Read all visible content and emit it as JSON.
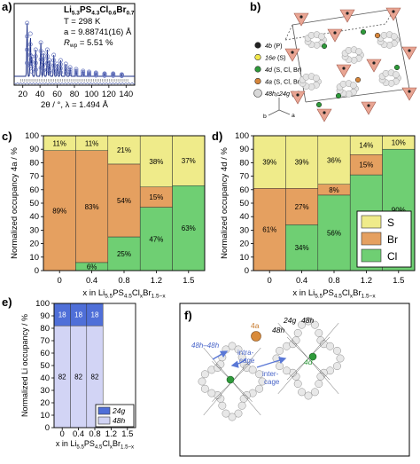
{
  "panels": {
    "a": {
      "label": "a)",
      "formula": "Li5.3PS4.3Cl0.6Br0.7",
      "formula_parts": [
        {
          "t": "Li",
          "sub": false
        },
        {
          "t": "5.3",
          "sub": true
        },
        {
          "t": "PS",
          "sub": false
        },
        {
          "t": "4.3",
          "sub": true
        },
        {
          "t": "Cl",
          "sub": false
        },
        {
          "t": "0.6",
          "sub": true
        },
        {
          "t": "Br",
          "sub": false
        },
        {
          "t": "0.7",
          "sub": true
        }
      ],
      "temp": "T = 298 K",
      "lattice": "a = 9.88741(16) Å",
      "rwp_prefix": "R",
      "rwp_sub": "wp",
      "rwp_value": " = 5.51 %",
      "xlabel": "2θ / °, λ = 1.494 Å",
      "xticks": [
        "20",
        "40",
        "60",
        "80",
        "100",
        "120",
        "140"
      ]
    },
    "b": {
      "label": "b)",
      "legend": [
        {
          "text": "4b (P)",
          "color": "#222222"
        },
        {
          "text": "16e (S)",
          "color": "#f2e84a"
        },
        {
          "text": "4d (S, Cl, Br)",
          "color": "#2e9a3a"
        },
        {
          "text": "4a (S, Cl, Br)",
          "color": "#d5853a"
        },
        {
          "text": "48h, 24g (Li)",
          "color": "#d8d8d8"
        }
      ],
      "axes_letters": [
        "c",
        "b",
        "a"
      ]
    },
    "c": {
      "label": "c)"
    },
    "d": {
      "label": "d)"
    },
    "e": {
      "label": "e)"
    },
    "f": {
      "label": "f)",
      "labels": {
        "site4a": "4a",
        "site24g": "24g",
        "site48h_top": "48h",
        "site48h_mid": "48h",
        "site4d": "4d",
        "jump": "48h–48h",
        "intra": "intra-",
        "intra2": "cage",
        "inter": "inter-",
        "inter2": "cage"
      }
    }
  },
  "chart_data": [
    {
      "panel": "c",
      "type": "bar",
      "stacked": true,
      "title": "",
      "ylabel": "Normalized occupancy 4a / %",
      "xlabel": "x in Li5.5PS4.5ClxBr1.5-x",
      "xlabel_parts": [
        {
          "t": "x in Li",
          "sub": false
        },
        {
          "t": "5.5",
          "sub": true
        },
        {
          "t": "PS",
          "sub": false
        },
        {
          "t": "4.5",
          "sub": true
        },
        {
          "t": "Cl",
          "sub": false
        },
        {
          "t": "x",
          "sub": true
        },
        {
          "t": "Br",
          "sub": false
        },
        {
          "t": "1.5−x",
          "sub": true
        }
      ],
      "categories": [
        "0",
        "0.4",
        "0.8",
        "1.2",
        "1.5"
      ],
      "ylim": [
        0,
        100
      ],
      "yticks": [
        "0",
        "10",
        "20",
        "30",
        "40",
        "50",
        "60",
        "70",
        "80",
        "90",
        "100"
      ],
      "series": [
        {
          "name": "Cl",
          "color": "#6fcf73",
          "values": [
            0,
            6,
            25,
            47,
            63
          ],
          "labels": [
            "",
            "6%",
            "25%",
            "47%",
            "63%"
          ]
        },
        {
          "name": "Br",
          "color": "#e5a060",
          "values": [
            89,
            83,
            54,
            15,
            0
          ],
          "labels": [
            "89%",
            "83%",
            "54%",
            "15%",
            ""
          ]
        },
        {
          "name": "S",
          "color": "#efeb8a",
          "values": [
            11,
            11,
            21,
            38,
            37
          ],
          "labels": [
            "11%",
            "11%",
            "21%",
            "38%",
            "37%"
          ]
        }
      ]
    },
    {
      "panel": "d",
      "type": "bar",
      "stacked": true,
      "title": "",
      "ylabel": "Normalized occupancy 4d / %",
      "xlabel": "x in Li5.5PS4.5ClxBr1.5-x",
      "xlabel_parts": [
        {
          "t": "x in Li",
          "sub": false
        },
        {
          "t": "5.5",
          "sub": true
        },
        {
          "t": "PS",
          "sub": false
        },
        {
          "t": "4.5",
          "sub": true
        },
        {
          "t": "Cl",
          "sub": false
        },
        {
          "t": "x",
          "sub": true
        },
        {
          "t": "Br",
          "sub": false
        },
        {
          "t": "1.5−x",
          "sub": true
        }
      ],
      "categories": [
        "0",
        "0.4",
        "0.8",
        "1.2",
        "1.5"
      ],
      "ylim": [
        0,
        100
      ],
      "yticks": [
        "0",
        "10",
        "20",
        "30",
        "40",
        "50",
        "60",
        "70",
        "80",
        "90",
        "100"
      ],
      "legend": {
        "placement": "bottom-right",
        "order": [
          "S",
          "Br",
          "Cl"
        ]
      },
      "series": [
        {
          "name": "Cl",
          "color": "#6fcf73",
          "values": [
            0,
            34,
            56,
            71,
            90
          ],
          "labels": [
            "",
            "34%",
            "56%",
            "71%",
            "90%"
          ]
        },
        {
          "name": "Br",
          "color": "#e5a060",
          "values": [
            61,
            27,
            8,
            15,
            0
          ],
          "labels": [
            "61%",
            "27%",
            "8%",
            "15%",
            ""
          ]
        },
        {
          "name": "S",
          "color": "#efeb8a",
          "values": [
            39,
            39,
            36,
            14,
            10
          ],
          "labels": [
            "39%",
            "39%",
            "36%",
            "14%",
            "10%"
          ]
        }
      ]
    },
    {
      "panel": "e",
      "type": "bar",
      "stacked": true,
      "title": "",
      "ylabel": "Normalized Li occupancy / %",
      "xlabel": "x in Li5.5PS4.5ClxBr1.5-x",
      "xlabel_parts": [
        {
          "t": "x in Li",
          "sub": false
        },
        {
          "t": "5.5",
          "sub": true
        },
        {
          "t": "PS",
          "sub": false
        },
        {
          "t": "4.5",
          "sub": true
        },
        {
          "t": "Cl",
          "sub": false
        },
        {
          "t": "x",
          "sub": true
        },
        {
          "t": "Br",
          "sub": false
        },
        {
          "t": "1.5−x",
          "sub": true
        }
      ],
      "categories": [
        "0",
        "0.4",
        "0.8",
        "1.2",
        "1.5"
      ],
      "ylim": [
        0,
        100
      ],
      "yticks": [
        "0",
        "10",
        "20",
        "30",
        "40",
        "50",
        "60",
        "70",
        "80",
        "90",
        "100"
      ],
      "legend": {
        "placement": "bottom-right",
        "order": [
          "24g",
          "48h"
        ]
      },
      "series": [
        {
          "name": "48h",
          "color": "#d2d4f5",
          "values": [
            82,
            82,
            82,
            0,
            0
          ],
          "labels": [
            "82",
            "82",
            "82",
            "",
            ""
          ]
        },
        {
          "name": "24g",
          "color": "#4f6fd8",
          "values": [
            18,
            18,
            18,
            0,
            0
          ],
          "labels": [
            "18",
            "18",
            "18",
            "",
            ""
          ]
        }
      ]
    }
  ]
}
